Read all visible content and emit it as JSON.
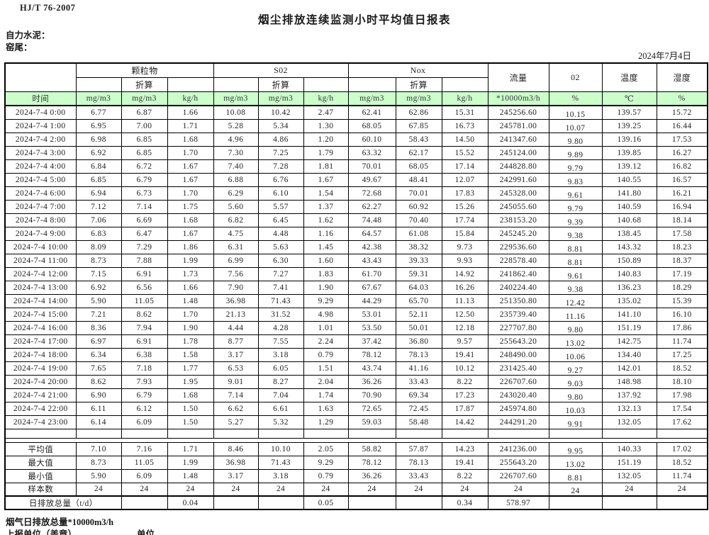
{
  "page": {
    "standard_code": "HJ/T  76-2007",
    "title": "烟尘排放连续监测小时平均值日报表",
    "company_label": "自力水泥：",
    "site_label": "窑尾：",
    "date": "2024年7月4日"
  },
  "table": {
    "groups": {
      "pm": "颗粒物",
      "so2": "S02",
      "nox": "Nox",
      "flow": "流量",
      "o2": "02",
      "temp": "温度",
      "humidity": "湿度",
      "converted": "折算"
    },
    "units": {
      "time": "时间",
      "mg": "mg/m3",
      "kgh": "kg/h",
      "flow": "*10000m3/h",
      "percent": "%",
      "celsius": "℃"
    },
    "rows": [
      [
        "2024-7-4 0:00",
        "6.77",
        "6.87",
        "1.66",
        "10.08",
        "10.42",
        "2.47",
        "62.41",
        "62.86",
        "15.31",
        "245256.60",
        "10.15",
        "139.57",
        "15.72"
      ],
      [
        "2024-7-4 1:00",
        "6.95",
        "7.00",
        "1.71",
        "5.28",
        "5.34",
        "1.30",
        "68.05",
        "67.85",
        "16.73",
        "245781.00",
        "10.07",
        "139.25",
        "16.44"
      ],
      [
        "2024-7-4 2:00",
        "6.98",
        "6.85",
        "1.68",
        "4.96",
        "4.86",
        "1.20",
        "60.10",
        "58.43",
        "14.50",
        "241347.60",
        "9.80",
        "139.16",
        "17.53"
      ],
      [
        "2024-7-4 3:00",
        "6.92",
        "6.85",
        "1.70",
        "7.30",
        "7.25",
        "1.79",
        "63.32",
        "62.17",
        "15.52",
        "245124.00",
        "9.89",
        "139.85",
        "16.27"
      ],
      [
        "2024-7-4 4:00",
        "6.84",
        "6.72",
        "1.67",
        "7.40",
        "7.28",
        "1.81",
        "70.01",
        "68.05",
        "17.14",
        "244828.80",
        "9.79",
        "139.12",
        "16.82"
      ],
      [
        "2024-7-4 5:00",
        "6.85",
        "6.79",
        "1.67",
        "6.88",
        "6.76",
        "1.67",
        "49.67",
        "48.41",
        "12.07",
        "242991.60",
        "9.83",
        "140.55",
        "16.57"
      ],
      [
        "2024-7-4 6:00",
        "6.94",
        "6.73",
        "1.70",
        "6.29",
        "6.10",
        "1.54",
        "72.68",
        "70.01",
        "17.83",
        "245328.00",
        "9.61",
        "141.80",
        "16.21"
      ],
      [
        "2024-7-4 7:00",
        "7.12",
        "7.14",
        "1.75",
        "5.60",
        "5.57",
        "1.37",
        "62.27",
        "60.92",
        "15.26",
        "245055.60",
        "9.79",
        "140.59",
        "16.94"
      ],
      [
        "2024-7-4 8:00",
        "7.06",
        "6.69",
        "1.68",
        "6.82",
        "6.45",
        "1.62",
        "74.48",
        "70.40",
        "17.74",
        "238153.20",
        "9.39",
        "140.68",
        "18.14"
      ],
      [
        "2024-7-4 9:00",
        "6.83",
        "6.47",
        "1.67",
        "4.75",
        "4.48",
        "1.16",
        "64.57",
        "61.08",
        "15.84",
        "245245.20",
        "9.38",
        "138.45",
        "17.58"
      ],
      [
        "2024-7-4 10:00",
        "8.09",
        "7.29",
        "1.86",
        "6.31",
        "5.63",
        "1.45",
        "42.38",
        "38.32",
        "9.73",
        "229536.60",
        "8.81",
        "143.32",
        "18.23"
      ],
      [
        "2024-7-4 11:00",
        "8.73",
        "7.88",
        "1.99",
        "6.99",
        "6.30",
        "1.60",
        "43.43",
        "39.33",
        "9.93",
        "228578.40",
        "8.81",
        "150.89",
        "18.37"
      ],
      [
        "2024-7-4 12:00",
        "7.15",
        "6.91",
        "1.73",
        "7.56",
        "7.27",
        "1.83",
        "61.70",
        "59.31",
        "14.92",
        "241862.40",
        "9.61",
        "140.83",
        "17.19"
      ],
      [
        "2024-7-4 13:00",
        "6.92",
        "6.56",
        "1.66",
        "7.90",
        "7.41",
        "1.90",
        "67.67",
        "64.03",
        "16.26",
        "240224.40",
        "9.38",
        "136.23",
        "18.29"
      ],
      [
        "2024-7-4 14:00",
        "5.90",
        "11.05",
        "1.48",
        "36.98",
        "71.43",
        "9.29",
        "44.29",
        "65.70",
        "11.13",
        "251350.80",
        "12.42",
        "135.02",
        "15.39"
      ],
      [
        "2024-7-4 15:00",
        "7.21",
        "8.62",
        "1.70",
        "21.13",
        "31.52",
        "4.98",
        "53.01",
        "52.11",
        "12.50",
        "235739.40",
        "11.16",
        "141.10",
        "16.10"
      ],
      [
        "2024-7-4 16:00",
        "8.36",
        "7.94",
        "1.90",
        "4.44",
        "4.28",
        "1.01",
        "53.50",
        "50.01",
        "12.18",
        "227707.80",
        "9.80",
        "151.19",
        "17.86"
      ],
      [
        "2024-7-4 17:00",
        "6.97",
        "6.91",
        "1.78",
        "8.77",
        "7.55",
        "2.24",
        "37.42",
        "36.80",
        "9.57",
        "255643.20",
        "13.02",
        "142.75",
        "11.74"
      ],
      [
        "2024-7-4 18:00",
        "6.34",
        "6.38",
        "1.58",
        "3.17",
        "3.18",
        "0.79",
        "78.12",
        "78.13",
        "19.41",
        "248490.00",
        "10.06",
        "134.40",
        "17.25"
      ],
      [
        "2024-7-4 19:00",
        "7.65",
        "7.18",
        "1.77",
        "6.53",
        "6.05",
        "1.51",
        "43.74",
        "41.16",
        "10.12",
        "231425.40",
        "9.27",
        "142.01",
        "18.52"
      ],
      [
        "2024-7-4 20:00",
        "8.62",
        "7.93",
        "1.95",
        "9.01",
        "8.27",
        "2.04",
        "36.26",
        "33.43",
        "8.22",
        "226707.60",
        "9.03",
        "148.98",
        "18.10"
      ],
      [
        "2024-7-4 21:00",
        "6.90",
        "6.79",
        "1.68",
        "7.14",
        "7.04",
        "1.74",
        "70.90",
        "69.34",
        "17.23",
        "243020.40",
        "9.80",
        "137.92",
        "17.98"
      ],
      [
        "2024-7-4 22:00",
        "6.11",
        "6.12",
        "1.50",
        "6.62",
        "6.61",
        "1.63",
        "72.65",
        "72.45",
        "17.87",
        "245974.80",
        "10.03",
        "132.13",
        "17.54"
      ],
      [
        "2024-7-4 23:00",
        "6.14",
        "6.09",
        "1.50",
        "5.27",
        "5.32",
        "1.29",
        "59.03",
        "58.48",
        "14.42",
        "244291.20",
        "9.91",
        "132.05",
        "17.62"
      ]
    ],
    "summary_rows": [
      [
        "平均值",
        "7.10",
        "7.16",
        "1.71",
        "8.46",
        "10.10",
        "2.05",
        "58.82",
        "57.87",
        "14.23",
        "241236.00",
        "9.95",
        "140.33",
        "17.02"
      ],
      [
        "最大值",
        "8.73",
        "11.05",
        "1.99",
        "36.98",
        "71.43",
        "9.29",
        "78.12",
        "78.13",
        "19.41",
        "255643.20",
        "13.02",
        "151.19",
        "18.52"
      ],
      [
        "最小值",
        "5.90",
        "6.09",
        "1.48",
        "3.17",
        "3.18",
        "0.79",
        "36.26",
        "33.43",
        "8.22",
        "226707.60",
        "8.81",
        "132.05",
        "11.74"
      ],
      [
        "样本数",
        "24",
        "24",
        "24",
        "24",
        "24",
        "24",
        "24",
        "24",
        "24",
        "24",
        "24",
        "24",
        "24"
      ]
    ],
    "total_row": {
      "label": "日排放总量（t/d）",
      "pm_kgh": "0.04",
      "so2_kgh": "0.05",
      "nox_kgh": "0.34",
      "flow": "578.97"
    }
  },
  "footer": {
    "flue_gas_total": "烟气日排放总量*10000m3/h",
    "report_unit": "上报单位（盖章）",
    "unit": "单位"
  },
  "colors": {
    "header_green": "#ccffcc",
    "border": "#000000"
  }
}
